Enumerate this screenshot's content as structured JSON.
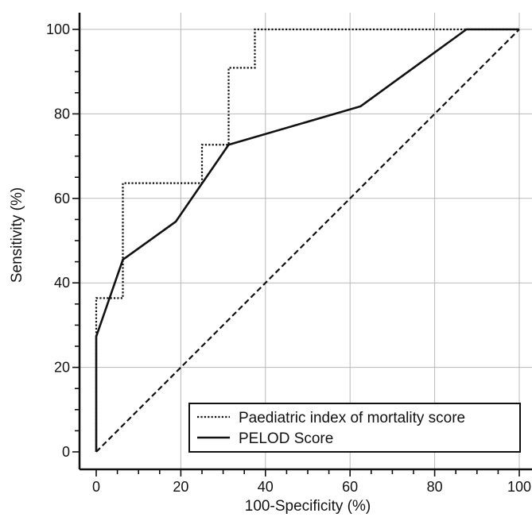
{
  "chart_data": {
    "type": "line",
    "xlabel": "100-Specificity (%)",
    "ylabel": "Sensitivity (%)",
    "xlim": [
      -4,
      103
    ],
    "ylim": [
      -3,
      104
    ],
    "x_ticks": [
      0,
      20,
      40,
      60,
      80,
      100
    ],
    "y_ticks": [
      0,
      20,
      40,
      60,
      80,
      100
    ],
    "grid": true,
    "legend_position": "bottom-right",
    "colors": {
      "series": "#111111",
      "grid": "#b9b9b9",
      "reference": "#111111"
    },
    "series": [
      {
        "name": "Paediatric index of mortality score",
        "style": "dotted",
        "points": [
          [
            0,
            0
          ],
          [
            0,
            27.3
          ],
          [
            0,
            36.4
          ],
          [
            6.3,
            36.4
          ],
          [
            6.3,
            63.6
          ],
          [
            25,
            63.6
          ],
          [
            25,
            72.7
          ],
          [
            31.3,
            72.7
          ],
          [
            31.3,
            90.9
          ],
          [
            37.5,
            90.9
          ],
          [
            37.5,
            100
          ],
          [
            100,
            100
          ]
        ]
      },
      {
        "name": "PELOD Score",
        "style": "solid",
        "points": [
          [
            0,
            0
          ],
          [
            0,
            27.3
          ],
          [
            6.3,
            45.5
          ],
          [
            18.8,
            54.5
          ],
          [
            31.3,
            72.7
          ],
          [
            62.5,
            81.8
          ],
          [
            87.5,
            100
          ],
          [
            100,
            100
          ]
        ]
      }
    ],
    "reference_line": {
      "style": "dashed",
      "points": [
        [
          0,
          0
        ],
        [
          100,
          100
        ]
      ]
    }
  }
}
